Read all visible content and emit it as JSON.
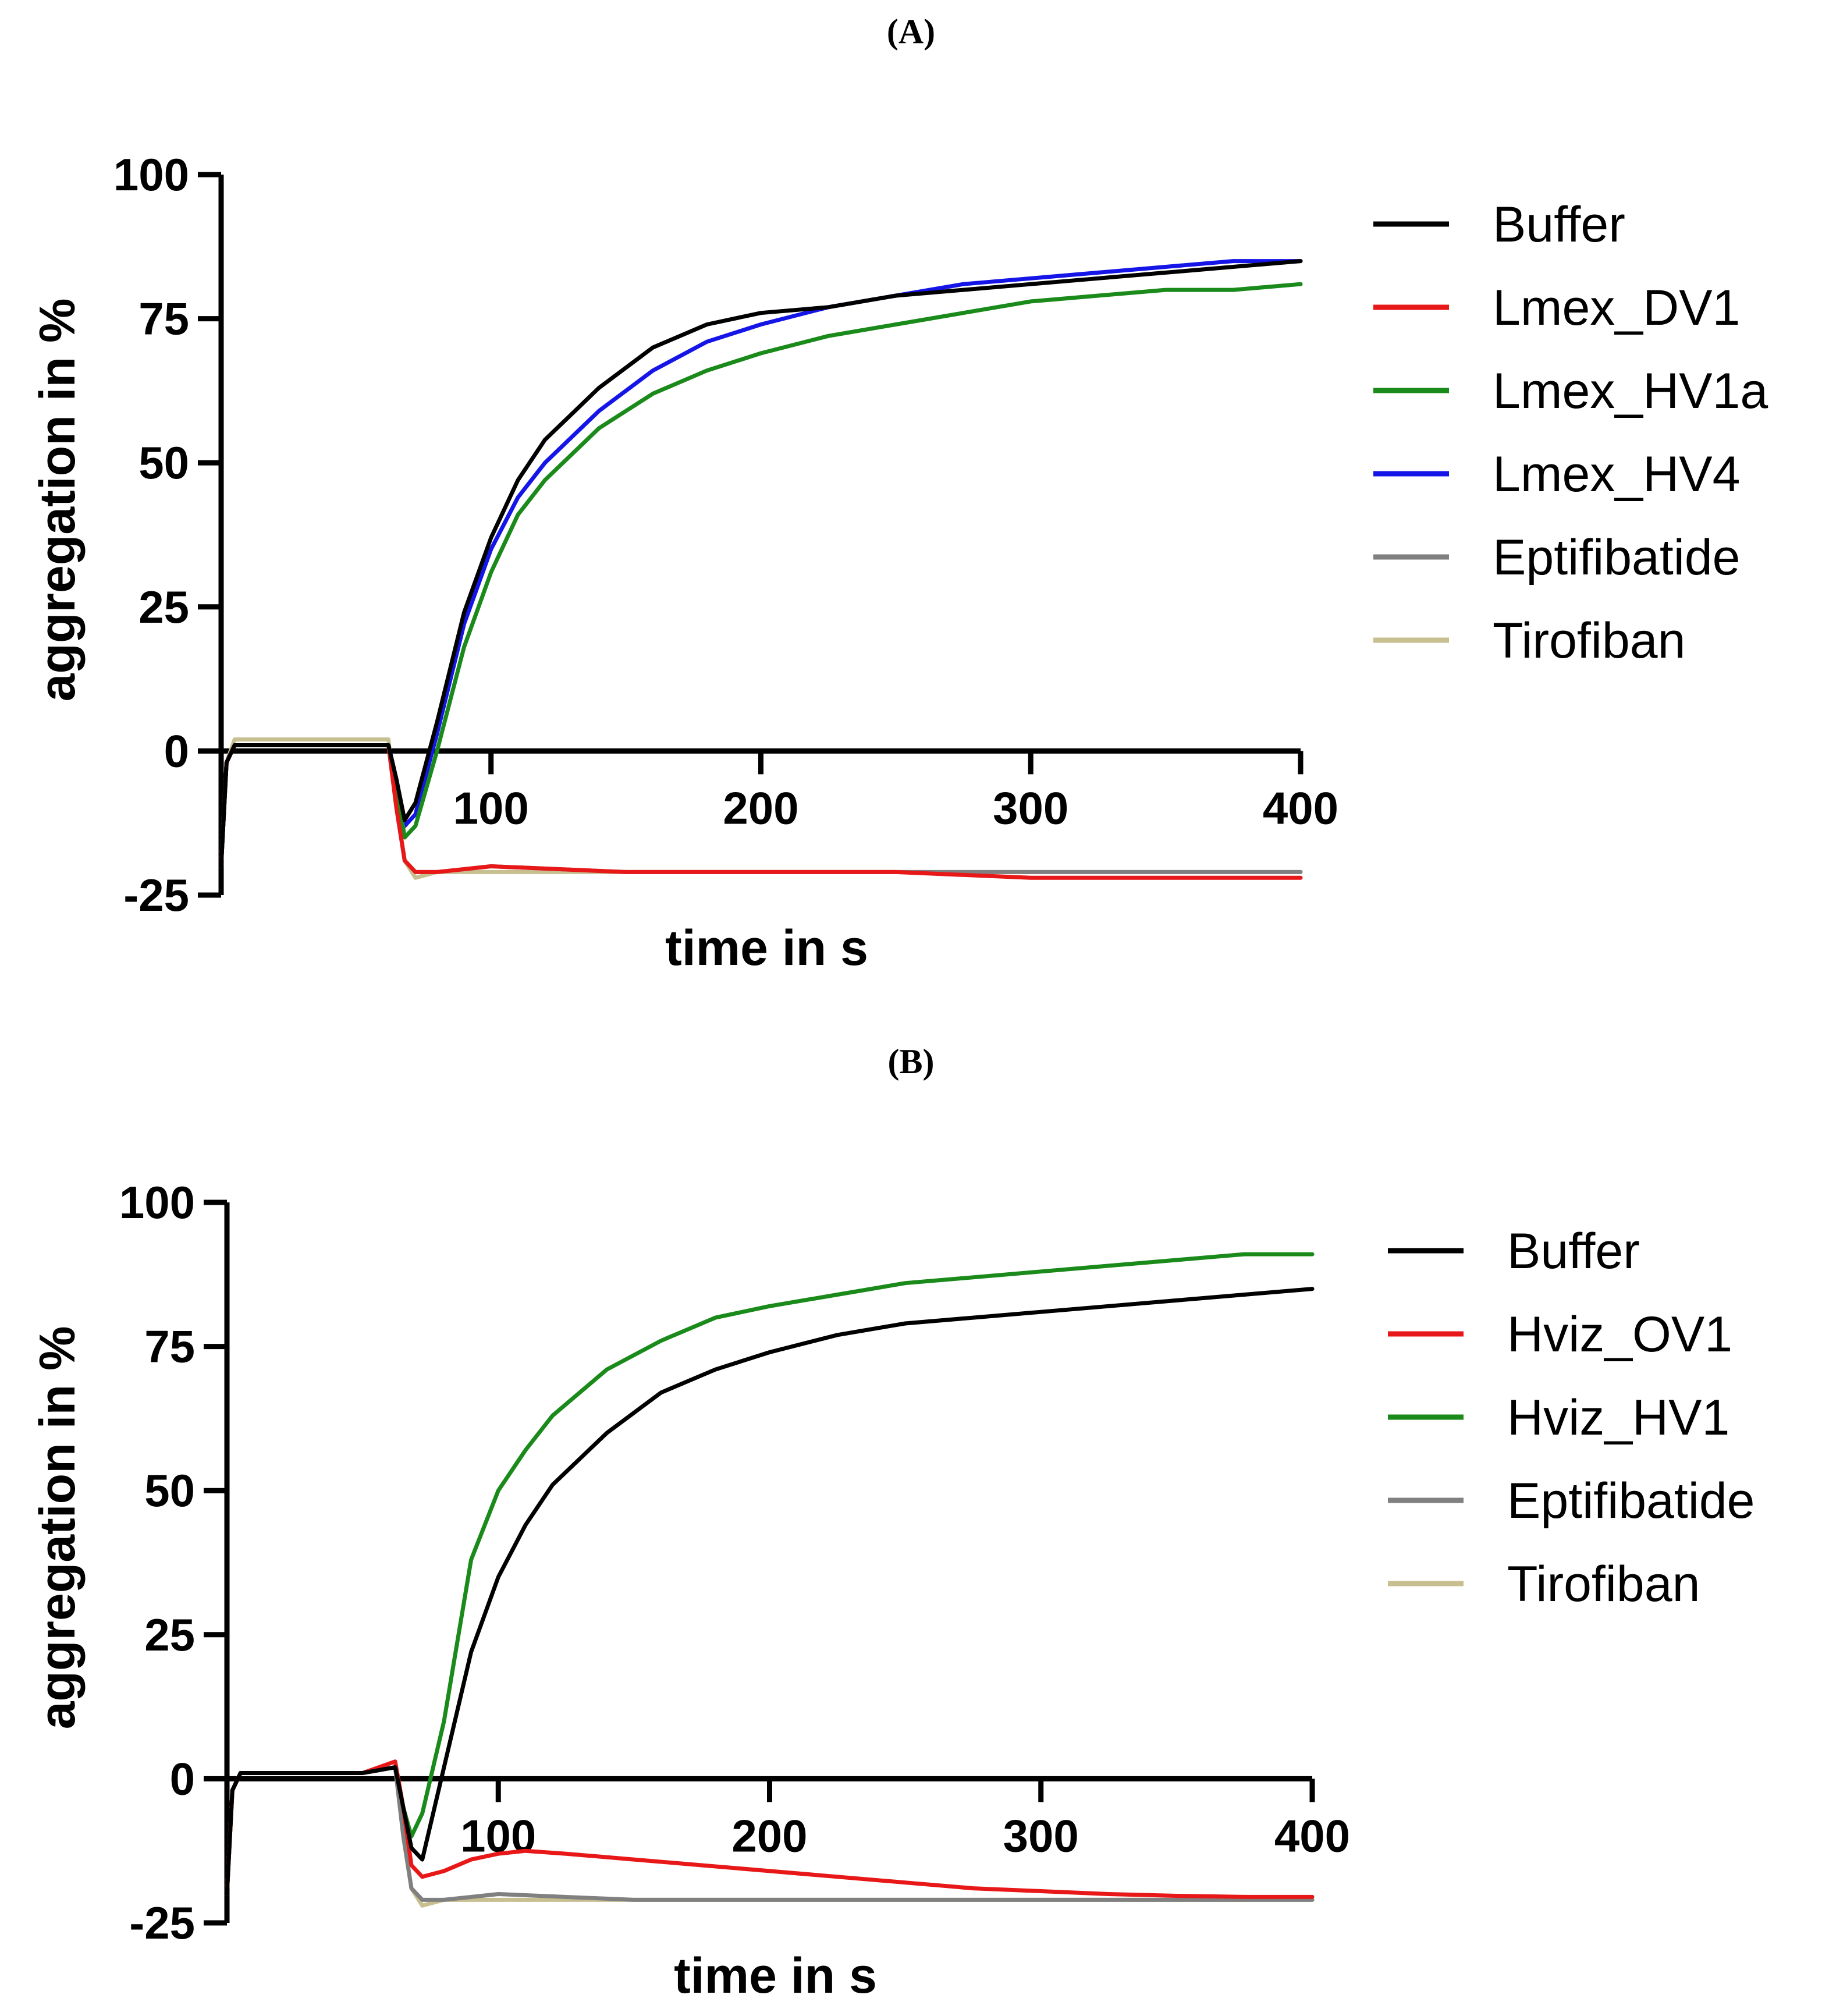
{
  "panels": [
    {
      "label": "(A)"
    },
    {
      "label": "(B)"
    }
  ],
  "chart_data": [
    {
      "type": "line",
      "title": "",
      "xlabel": "time in s",
      "ylabel": "aggregation in %",
      "xlim": [
        0,
        400
      ],
      "ylim": [
        -25,
        100
      ],
      "xticks": [
        "100",
        "200",
        "300",
        "400"
      ],
      "yticks": [
        "100",
        "75",
        "50",
        "25",
        "0",
        "-25"
      ],
      "legend_position": "right",
      "series": [
        {
          "name": "Buffer",
          "color": "#000000",
          "x": [
            0,
            2,
            5,
            10,
            30,
            50,
            62,
            65,
            68,
            72,
            80,
            90,
            100,
            110,
            120,
            140,
            160,
            180,
            200,
            225,
            250,
            275,
            300,
            325,
            350,
            375,
            400
          ],
          "values": [
            -20,
            -2,
            1,
            1,
            1,
            1,
            1,
            -5,
            -12,
            -9,
            5,
            24,
            37,
            47,
            54,
            63,
            70,
            74,
            76,
            77,
            79,
            80,
            81,
            82,
            83,
            84,
            85
          ]
        },
        {
          "name": "Lmex_DV1",
          "color": "#e81818",
          "x": [
            0,
            2,
            5,
            10,
            30,
            50,
            62,
            65,
            68,
            72,
            80,
            100,
            150,
            200,
            250,
            300,
            350,
            400
          ],
          "values": [
            -20,
            -2,
            1,
            1,
            1,
            1,
            1,
            -10,
            -19,
            -21,
            -21,
            -20,
            -21,
            -21,
            -21,
            -22,
            -22,
            -22
          ]
        },
        {
          "name": "Lmex_HV1a",
          "color": "#1a8a1a",
          "x": [
            0,
            2,
            5,
            10,
            30,
            50,
            62,
            65,
            68,
            72,
            80,
            90,
            100,
            110,
            120,
            140,
            160,
            180,
            200,
            225,
            250,
            275,
            300,
            325,
            350,
            375,
            400
          ],
          "values": [
            -20,
            -2,
            1,
            1,
            1,
            1,
            1,
            -6,
            -15,
            -13,
            0,
            18,
            31,
            41,
            47,
            56,
            62,
            66,
            69,
            72,
            74,
            76,
            78,
            79,
            80,
            80,
            81
          ]
        },
        {
          "name": "Lmex_HV4",
          "color": "#1515e8",
          "x": [
            0,
            2,
            5,
            10,
            30,
            50,
            62,
            65,
            68,
            72,
            80,
            90,
            100,
            110,
            120,
            140,
            160,
            180,
            200,
            225,
            250,
            275,
            300,
            325,
            350,
            375,
            400
          ],
          "values": [
            -20,
            -2,
            1,
            1,
            1,
            1,
            1,
            -5,
            -13,
            -11,
            3,
            22,
            35,
            44,
            50,
            59,
            66,
            71,
            74,
            77,
            79,
            81,
            82,
            83,
            84,
            85,
            85
          ]
        },
        {
          "name": "Eptifibatide",
          "color": "#808080",
          "x": [
            0,
            2,
            5,
            10,
            30,
            50,
            62,
            65,
            68,
            72,
            80,
            100,
            150,
            200,
            250,
            300,
            350,
            400
          ],
          "values": [
            -20,
            -2,
            1,
            1,
            1,
            1,
            1,
            -10,
            -19,
            -21,
            -21,
            -20,
            -21,
            -21,
            -21,
            -21,
            -21,
            -21
          ]
        },
        {
          "name": "Tirofiban",
          "color": "#c8bf90",
          "x": [
            0,
            2,
            5,
            10,
            30,
            50,
            62,
            65,
            68,
            72,
            80,
            100,
            150,
            200,
            250,
            300,
            350,
            400
          ],
          "values": [
            -20,
            -2,
            2,
            2,
            2,
            2,
            2,
            -10,
            -19,
            -22,
            -21,
            -21,
            -21,
            -21,
            -21,
            -21,
            -21,
            -21
          ]
        }
      ]
    },
    {
      "type": "line",
      "title": "",
      "xlabel": "time in s",
      "ylabel": "aggregation in %",
      "xlim": [
        0,
        400
      ],
      "ylim": [
        -25,
        100
      ],
      "xticks": [
        "100",
        "200",
        "300",
        "400"
      ],
      "yticks": [
        "100",
        "75",
        "50",
        "25",
        "0",
        "-25"
      ],
      "legend_position": "right",
      "series": [
        {
          "name": "Buffer",
          "color": "#000000",
          "x": [
            0,
            2,
            5,
            10,
            30,
            50,
            62,
            65,
            68,
            72,
            80,
            90,
            100,
            110,
            120,
            140,
            160,
            180,
            200,
            225,
            250,
            275,
            300,
            325,
            350,
            375,
            400
          ],
          "values": [
            -20,
            -2,
            1,
            1,
            1,
            1,
            2,
            -5,
            -12,
            -14,
            2,
            22,
            35,
            44,
            51,
            60,
            67,
            71,
            74,
            77,
            79,
            80,
            81,
            82,
            83,
            84,
            85
          ]
        },
        {
          "name": "Hviz_OV1",
          "color": "#e81818",
          "x": [
            0,
            2,
            5,
            10,
            30,
            50,
            62,
            65,
            68,
            72,
            80,
            90,
            100,
            110,
            125,
            150,
            175,
            200,
            225,
            250,
            275,
            300,
            325,
            350,
            375,
            400
          ],
          "values": [
            -20,
            -2,
            1,
            1,
            1,
            1,
            3,
            -5,
            -15,
            -17,
            -16,
            -14,
            -13,
            -12.5,
            -13,
            -14,
            -15,
            -16,
            -17,
            -18,
            -19,
            -19.5,
            -20,
            -20.3,
            -20.5,
            -20.5
          ]
        },
        {
          "name": "Hviz_HV1",
          "color": "#1a8a1a",
          "x": [
            0,
            2,
            5,
            10,
            30,
            50,
            62,
            65,
            68,
            72,
            80,
            90,
            100,
            110,
            120,
            140,
            160,
            180,
            200,
            225,
            250,
            275,
            300,
            325,
            350,
            375,
            400
          ],
          "values": [
            -20,
            -2,
            1,
            1,
            1,
            1,
            2,
            -5,
            -10,
            -6,
            10,
            38,
            50,
            57,
            63,
            71,
            76,
            80,
            82,
            84,
            86,
            87,
            88,
            89,
            90,
            91,
            91
          ]
        },
        {
          "name": "Eptifibatide",
          "color": "#808080",
          "x": [
            0,
            2,
            5,
            10,
            30,
            50,
            62,
            65,
            68,
            72,
            80,
            100,
            150,
            200,
            250,
            300,
            350,
            400
          ],
          "values": [
            -20,
            -2,
            1,
            1,
            1,
            1,
            2,
            -10,
            -19,
            -21,
            -21,
            -20,
            -21,
            -21,
            -21,
            -21,
            -21,
            -21
          ]
        },
        {
          "name": "Tirofiban",
          "color": "#c8bf90",
          "x": [
            0,
            2,
            5,
            10,
            30,
            50,
            62,
            65,
            68,
            72,
            80,
            100,
            150,
            200,
            250,
            300,
            350,
            400
          ],
          "values": [
            -20,
            -2,
            1,
            1,
            1,
            1,
            2,
            -10,
            -19,
            -22,
            -21,
            -21,
            -21,
            -21,
            -21,
            -21,
            -21,
            -21
          ]
        }
      ]
    }
  ]
}
